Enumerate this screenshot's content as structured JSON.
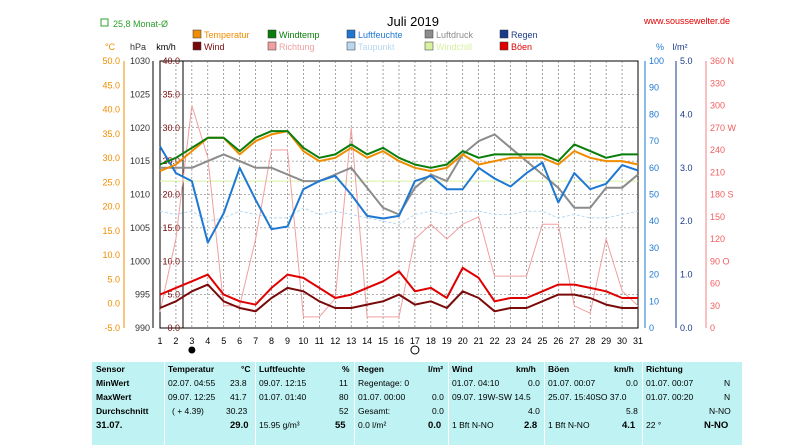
{
  "header": {
    "monthly_avg": "25,8 Monat-Ø",
    "title": "Juli 2019",
    "site": "www.soussewelter.de"
  },
  "legend": [
    {
      "label": "Temperatur",
      "color": "#f08c00"
    },
    {
      "label": "Windtemp",
      "color": "#0a7d0a"
    },
    {
      "label": "Luftfeuchte",
      "color": "#1e78d2"
    },
    {
      "label": "Luftdruck",
      "color": "#8c8c8c"
    },
    {
      "label": "Regen",
      "color": "#1a3a8a"
    },
    {
      "label": "Wind",
      "color": "#7a0a0a"
    },
    {
      "label": "Richtung",
      "color": "#f0a0a0"
    },
    {
      "label": "Taupunkt",
      "color": "#b8d8f0"
    },
    {
      "label": "Windchill",
      "color": "#d8f0a0"
    },
    {
      "label": "Böen",
      "color": "#e00000"
    }
  ],
  "axes": {
    "temp_unit": "°C",
    "hpa_unit": "hPa",
    "kmh_unit": "km/h",
    "pct_unit": "%",
    "rain_unit": "l/m²",
    "temp_ticks": [
      "50.0",
      "45.0",
      "40.0",
      "35.0",
      "30.0",
      "25.0",
      "20.0",
      "15.0",
      "10.0",
      "5.0",
      "0.0",
      "-5.0"
    ],
    "hpa_ticks": [
      "1030",
      "1025",
      "1020",
      "1015",
      "1010",
      "1005",
      "1000",
      "995",
      "990"
    ],
    "kmh_ticks": [
      "40.0",
      "35.0",
      "30.0",
      "25.0",
      "20.0",
      "15.0",
      "10.0",
      "5.0",
      "0.0"
    ],
    "pct_ticks": [
      "100",
      "90",
      "80",
      "70",
      "60",
      "50",
      "40",
      "30",
      "20",
      "10",
      "0"
    ],
    "rain_ticks": [
      "5.0",
      "4.0",
      "3.0",
      "2.0",
      "1.0",
      "0.0"
    ],
    "dir_ticks": [
      "360 N",
      "330",
      "300",
      "270 W",
      "240",
      "210",
      "180 S",
      "150",
      "120",
      "90 O",
      "60",
      "30",
      "0"
    ],
    "x_labels": [
      "1",
      "2",
      "3",
      "4",
      "5",
      "6",
      "7",
      "8",
      "9",
      "10",
      "11",
      "12",
      "13",
      "14",
      "15",
      "16",
      "17",
      "18",
      "19",
      "20",
      "21",
      "22",
      "23",
      "24",
      "25",
      "26",
      "27",
      "28",
      "29",
      "30",
      "31"
    ],
    "moon_new_day": 3,
    "moon_full_day": 17
  },
  "chart_data": {
    "type": "line",
    "title": "Juli 2019",
    "x": [
      1,
      2,
      3,
      4,
      5,
      6,
      7,
      8,
      9,
      10,
      11,
      12,
      13,
      14,
      15,
      16,
      17,
      18,
      19,
      20,
      21,
      22,
      23,
      24,
      25,
      26,
      27,
      28,
      29,
      30,
      31
    ],
    "series": [
      {
        "name": "Temperatur",
        "axis": "kmh",
        "color": "#f08c00",
        "values": [
          23.5,
          24.5,
          26.5,
          28.5,
          28.5,
          26,
          28,
          29,
          29.5,
          26.5,
          25,
          25.5,
          27,
          25.5,
          26.5,
          25,
          24,
          23.5,
          24,
          26,
          24.5,
          25,
          25.5,
          25.5,
          25.5,
          24.5,
          26.5,
          25.5,
          25,
          25,
          24.5
        ]
      },
      {
        "name": "Windtemp",
        "axis": "kmh",
        "color": "#0a7d0a",
        "values": [
          24.5,
          25.5,
          27,
          28.5,
          28.5,
          26.5,
          28.5,
          29.5,
          29.5,
          27,
          25.5,
          26,
          27.5,
          26,
          27,
          25.5,
          24.5,
          24,
          24.5,
          26.5,
          25.5,
          26,
          26,
          26,
          26,
          25,
          27.5,
          26.5,
          25.5,
          26,
          26
        ]
      },
      {
        "name": "Luftfeuchte",
        "axis": "pct",
        "color": "#1e78d2",
        "values": [
          68,
          58,
          55,
          32,
          43,
          60,
          48,
          37,
          38,
          52,
          55,
          57,
          50,
          42,
          41,
          42,
          55,
          57,
          52,
          52,
          60,
          56,
          53,
          58,
          62,
          47,
          58,
          52,
          54,
          61,
          59
        ]
      },
      {
        "name": "Luftdruck",
        "axis": "hpa",
        "color": "#8c8c8c",
        "values": [
          1014,
          1014,
          1014,
          1015,
          1016,
          1015,
          1014,
          1014,
          1013,
          1012,
          1012,
          1013,
          1014,
          1011,
          1008,
          1007,
          1011,
          1013,
          1012,
          1016,
          1018,
          1019,
          1017,
          1015,
          1013,
          1011,
          1008,
          1008,
          1011,
          1011,
          1013
        ]
      },
      {
        "name": "Richtung",
        "axis": "dir",
        "color": "#f0a0a0",
        "values": [
          22,
          120,
          300,
          230,
          30,
          30,
          120,
          240,
          240,
          15,
          15,
          40,
          270,
          15,
          15,
          15,
          120,
          140,
          120,
          140,
          150,
          70,
          70,
          70,
          140,
          140,
          30,
          20,
          120,
          50,
          30
        ]
      },
      {
        "name": "Taupunkt",
        "axis": "kmh",
        "color": "#b8d8f0",
        "values": [
          17.5,
          17,
          17.5,
          16,
          16.5,
          17.5,
          17,
          16.5,
          16.5,
          18,
          17,
          17.5,
          17,
          16.5,
          16,
          15.5,
          17,
          17.5,
          17,
          17.5,
          17.5,
          17,
          17,
          17.5,
          17.5,
          16.5,
          17,
          16.5,
          16.5,
          17,
          17.5
        ]
      },
      {
        "name": "Windchill",
        "axis": "kmh",
        "color": "#d8f0a0",
        "values": [
          22,
          22,
          22,
          22,
          22,
          22,
          22,
          22,
          22,
          22,
          22,
          22,
          22,
          22,
          22,
          22,
          22,
          22,
          22,
          22,
          22,
          22,
          22,
          22,
          22,
          22,
          22,
          22,
          22,
          22,
          22
        ]
      },
      {
        "name": "Wind",
        "axis": "kmh",
        "color": "#7a0a0a",
        "values": [
          3,
          4,
          5.5,
          6.5,
          4,
          3,
          2.5,
          4.5,
          6,
          5.5,
          4,
          3,
          3,
          3.5,
          4,
          5,
          3.5,
          4,
          3,
          5.5,
          4.5,
          2.5,
          3,
          3,
          4,
          5,
          5,
          4.5,
          3.5,
          3,
          3
        ]
      },
      {
        "name": "Böen",
        "axis": "kmh",
        "color": "#e00000",
        "values": [
          5,
          6,
          7,
          8,
          5,
          4,
          3.5,
          6,
          8,
          7.5,
          6,
          4.5,
          5,
          6,
          7,
          8.5,
          5.5,
          6,
          4.5,
          9,
          7.5,
          4,
          4.5,
          4.5,
          5.5,
          6.5,
          6.5,
          6,
          5.5,
          4.5,
          4.5
        ]
      }
    ],
    "ylim_kmh": [
      0,
      40
    ],
    "ylim_hpa": [
      990,
      1030
    ],
    "ylim_pct": [
      0,
      100
    ],
    "ylim_dir": [
      0,
      360
    ],
    "grid": true,
    "legend_position": "top"
  },
  "stats": {
    "headers": {
      "sensor": "Sensor",
      "temp": "Temperatur",
      "temp_unit": "°C",
      "hum": "Luftfeuchte",
      "hum_unit": "%",
      "rain": "Regen",
      "rain_unit": "l/m²",
      "wind": "Wind",
      "wind_unit": "km/h",
      "gust": "Böen",
      "gust_unit": "km/h",
      "dir": "Richtung"
    },
    "rows": {
      "min": {
        "label": "MinWert",
        "temp_time": "02.07. 04:55",
        "temp_val": "23.8",
        "hum_time": "09.07. 12:15",
        "hum_val": "11",
        "rain_text": "Regentage: 0",
        "rain_val": "",
        "wind_time": "01.07. 04:10",
        "wind_val": "0.0",
        "gust_time": "01.07. 00:07",
        "gust_val": "0.0",
        "dir_time": "01.07. 00:07",
        "dir_val": "N"
      },
      "max": {
        "label": "MaxWert",
        "temp_time": "09.07. 12:25",
        "temp_val": "41.7",
        "hum_time": "01.07. 01:40",
        "hum_val": "80",
        "rain_text": "01.07. 00:00",
        "rain_val": "0.0",
        "wind_time": "09.07. 19W-SW 14.5",
        "wind_val": "",
        "gust_time": "25.07. 15:40SO 37.0",
        "gust_val": "",
        "dir_time": "01.07. 00:20",
        "dir_val": "N"
      },
      "avg": {
        "label": "Durchschnitt",
        "temp_time": "( + 4.39)",
        "temp_val": "30.23",
        "hum_time": "",
        "hum_val": "52",
        "rain_text": "Gesamt:",
        "rain_val": "0.0",
        "wind_time": "",
        "wind_val": "4.0",
        "gust_time": "",
        "gust_val": "5.8",
        "dir_time": "",
        "dir_val": "N-NO"
      },
      "last": {
        "label": "31.07.",
        "temp_time": "",
        "temp_val": "29.0",
        "hum_time": "15.95 g/m³",
        "hum_val": "55",
        "rain_text": "0.0 l/m²",
        "rain_val": "0.0",
        "wind_time": "1 Bft N-NO",
        "wind_val": "2.8",
        "gust_time": "1 Bft N-NO",
        "gust_val": "4.1",
        "dir_time": "22 °",
        "dir_val": "N-NO"
      }
    }
  }
}
